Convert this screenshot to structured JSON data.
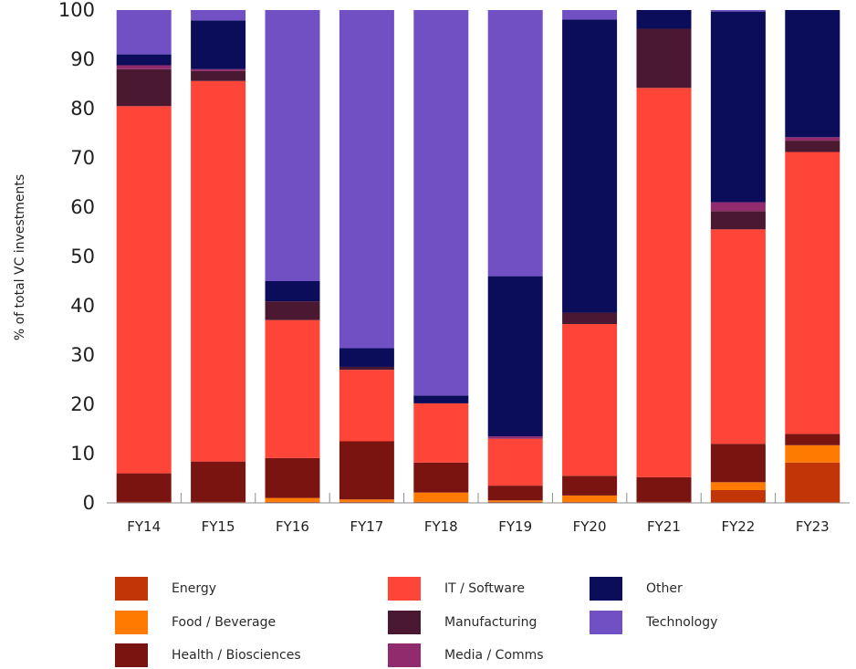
{
  "chart_data": {
    "type": "bar",
    "stacked": true,
    "ylabel": "% of total VC investments",
    "xlabel": "",
    "ylim": [
      0,
      100
    ],
    "yticks": [
      0,
      10,
      20,
      30,
      40,
      50,
      60,
      70,
      80,
      90,
      100
    ],
    "categories": [
      "FY14",
      "FY15",
      "FY16",
      "FY17",
      "FY18",
      "FY19",
      "FY20",
      "FY21",
      "FY22",
      "FY23"
    ],
    "series": [
      {
        "name": "Energy",
        "color": "#c23506",
        "values": [
          0.2,
          0.2,
          0.2,
          0.2,
          0.2,
          0.2,
          0.2,
          0.2,
          2.6,
          8.2
        ]
      },
      {
        "name": "Food / Beverage",
        "color": "#ff7a00",
        "values": [
          0.0,
          0.0,
          0.8,
          0.5,
          1.9,
          0.3,
          1.3,
          0.0,
          1.6,
          3.5
        ]
      },
      {
        "name": "Health / Biosciences",
        "color": "#7a1410",
        "values": [
          5.8,
          8.2,
          8.1,
          11.8,
          6.1,
          3.0,
          4.0,
          5.0,
          7.8,
          2.3
        ]
      },
      {
        "name": "IT / Software",
        "color": "#ff4438",
        "values": [
          74.5,
          77.2,
          28.0,
          14.5,
          12.0,
          9.5,
          30.8,
          79.0,
          43.5,
          57.2
        ]
      },
      {
        "name": "Manufacturing",
        "color": "#4a1830",
        "values": [
          7.5,
          2.0,
          3.8,
          0.6,
          0.0,
          0.0,
          2.3,
          12.0,
          3.7,
          2.3
        ]
      },
      {
        "name": "Media / Comms",
        "color": "#912b6e",
        "values": [
          0.8,
          0.4,
          0.0,
          0.0,
          0.0,
          0.5,
          0.0,
          0.0,
          1.8,
          0.7
        ]
      },
      {
        "name": "Other",
        "color": "#0b0c5a",
        "values": [
          2.2,
          9.9,
          4.1,
          3.8,
          1.6,
          32.5,
          59.5,
          3.8,
          38.7,
          25.8
        ]
      },
      {
        "name": "Technology",
        "color": "#7150c4",
        "values": [
          9.0,
          2.1,
          55.0,
          68.6,
          78.2,
          54.0,
          1.9,
          0.0,
          0.3,
          0.0
        ]
      }
    ],
    "legend_position": "bottom",
    "grid": false
  },
  "legend": {
    "items": [
      {
        "label": "Energy",
        "color": "#c23506"
      },
      {
        "label": "IT / Software",
        "color": "#ff4438"
      },
      {
        "label": "Other",
        "color": "#0b0c5a"
      },
      {
        "label": "Food / Beverage",
        "color": "#ff7a00"
      },
      {
        "label": "Manufacturing",
        "color": "#4a1830"
      },
      {
        "label": "Technology",
        "color": "#7150c4"
      },
      {
        "label": "Health / Biosciences",
        "color": "#7a1410"
      },
      {
        "label": "Media / Comms",
        "color": "#912b6e"
      }
    ]
  }
}
